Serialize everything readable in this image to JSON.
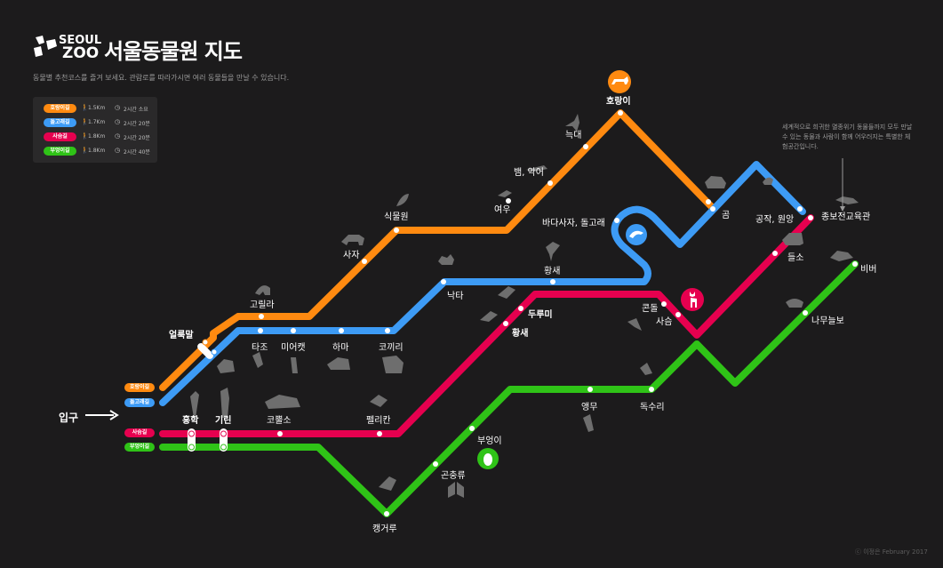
{
  "header": {
    "logo_top": "SEOUL",
    "logo_bottom": "ZOO",
    "title": "서울동물원 지도",
    "subtitle": "동물별 추천코스를 즐겨 보세요. 관람로를 따라가시면 여러 동물들을 만날 수 있습니다."
  },
  "legend": [
    {
      "name": "호랑이길",
      "distance": "1.5Km",
      "time": "2시간 소요",
      "color": "#ff8a10"
    },
    {
      "name": "돌고래길",
      "distance": "1.7Km",
      "time": "2시간 20분",
      "color": "#3d9bf5"
    },
    {
      "name": "사슴길",
      "distance": "1.8Km",
      "time": "2시간 20분",
      "color": "#e6004f"
    },
    {
      "name": "부엉이길",
      "distance": "1.8Km",
      "time": "2시간 40분",
      "color": "#2fc317"
    }
  ],
  "note": "세계적으로 희귀한 멸종위기 동물들까지 모두 만날 수 있는 동물과 사람이 함께 어우러지는 특별한 체험공간입니다.",
  "entrance": "입구",
  "credit": "ⓒ 이정은 February 2017",
  "stations": {
    "tiger": "호랑이",
    "wolf": "늑대",
    "snake": "뱀, 악어",
    "fox": "여우",
    "plants": "식물원",
    "lion": "사자",
    "gorilla": "고릴라",
    "zebra": "얼룩말",
    "bear": "곰",
    "dolphin": "바다사자, 돌고래",
    "peacock": "공작, 원앙",
    "eco": "종보전교육관",
    "otter": "들소",
    "beaver": "비버",
    "camel": "낙타",
    "stork": "황새",
    "ostrich": "타조",
    "meerkat": "미어캣",
    "hippo": "하마",
    "elephant": "코끼리",
    "crane": "두루미",
    "stork2": "황새",
    "condor": "콘돌",
    "deer": "사슴",
    "sloth": "나무늘보",
    "flamingo": "홍학",
    "giraffe": "기린",
    "rhino": "코뿔소",
    "pelican": "펠리칸",
    "parrot": "앵무",
    "eagle": "독수리",
    "owl": "부엉이",
    "insect": "곤충류",
    "kangaroo": "캥거루"
  },
  "line_labels": {
    "tiger": "호랑이길",
    "dolphin": "돌고래길",
    "deer": "사슴길",
    "owl": "부엉이길"
  }
}
